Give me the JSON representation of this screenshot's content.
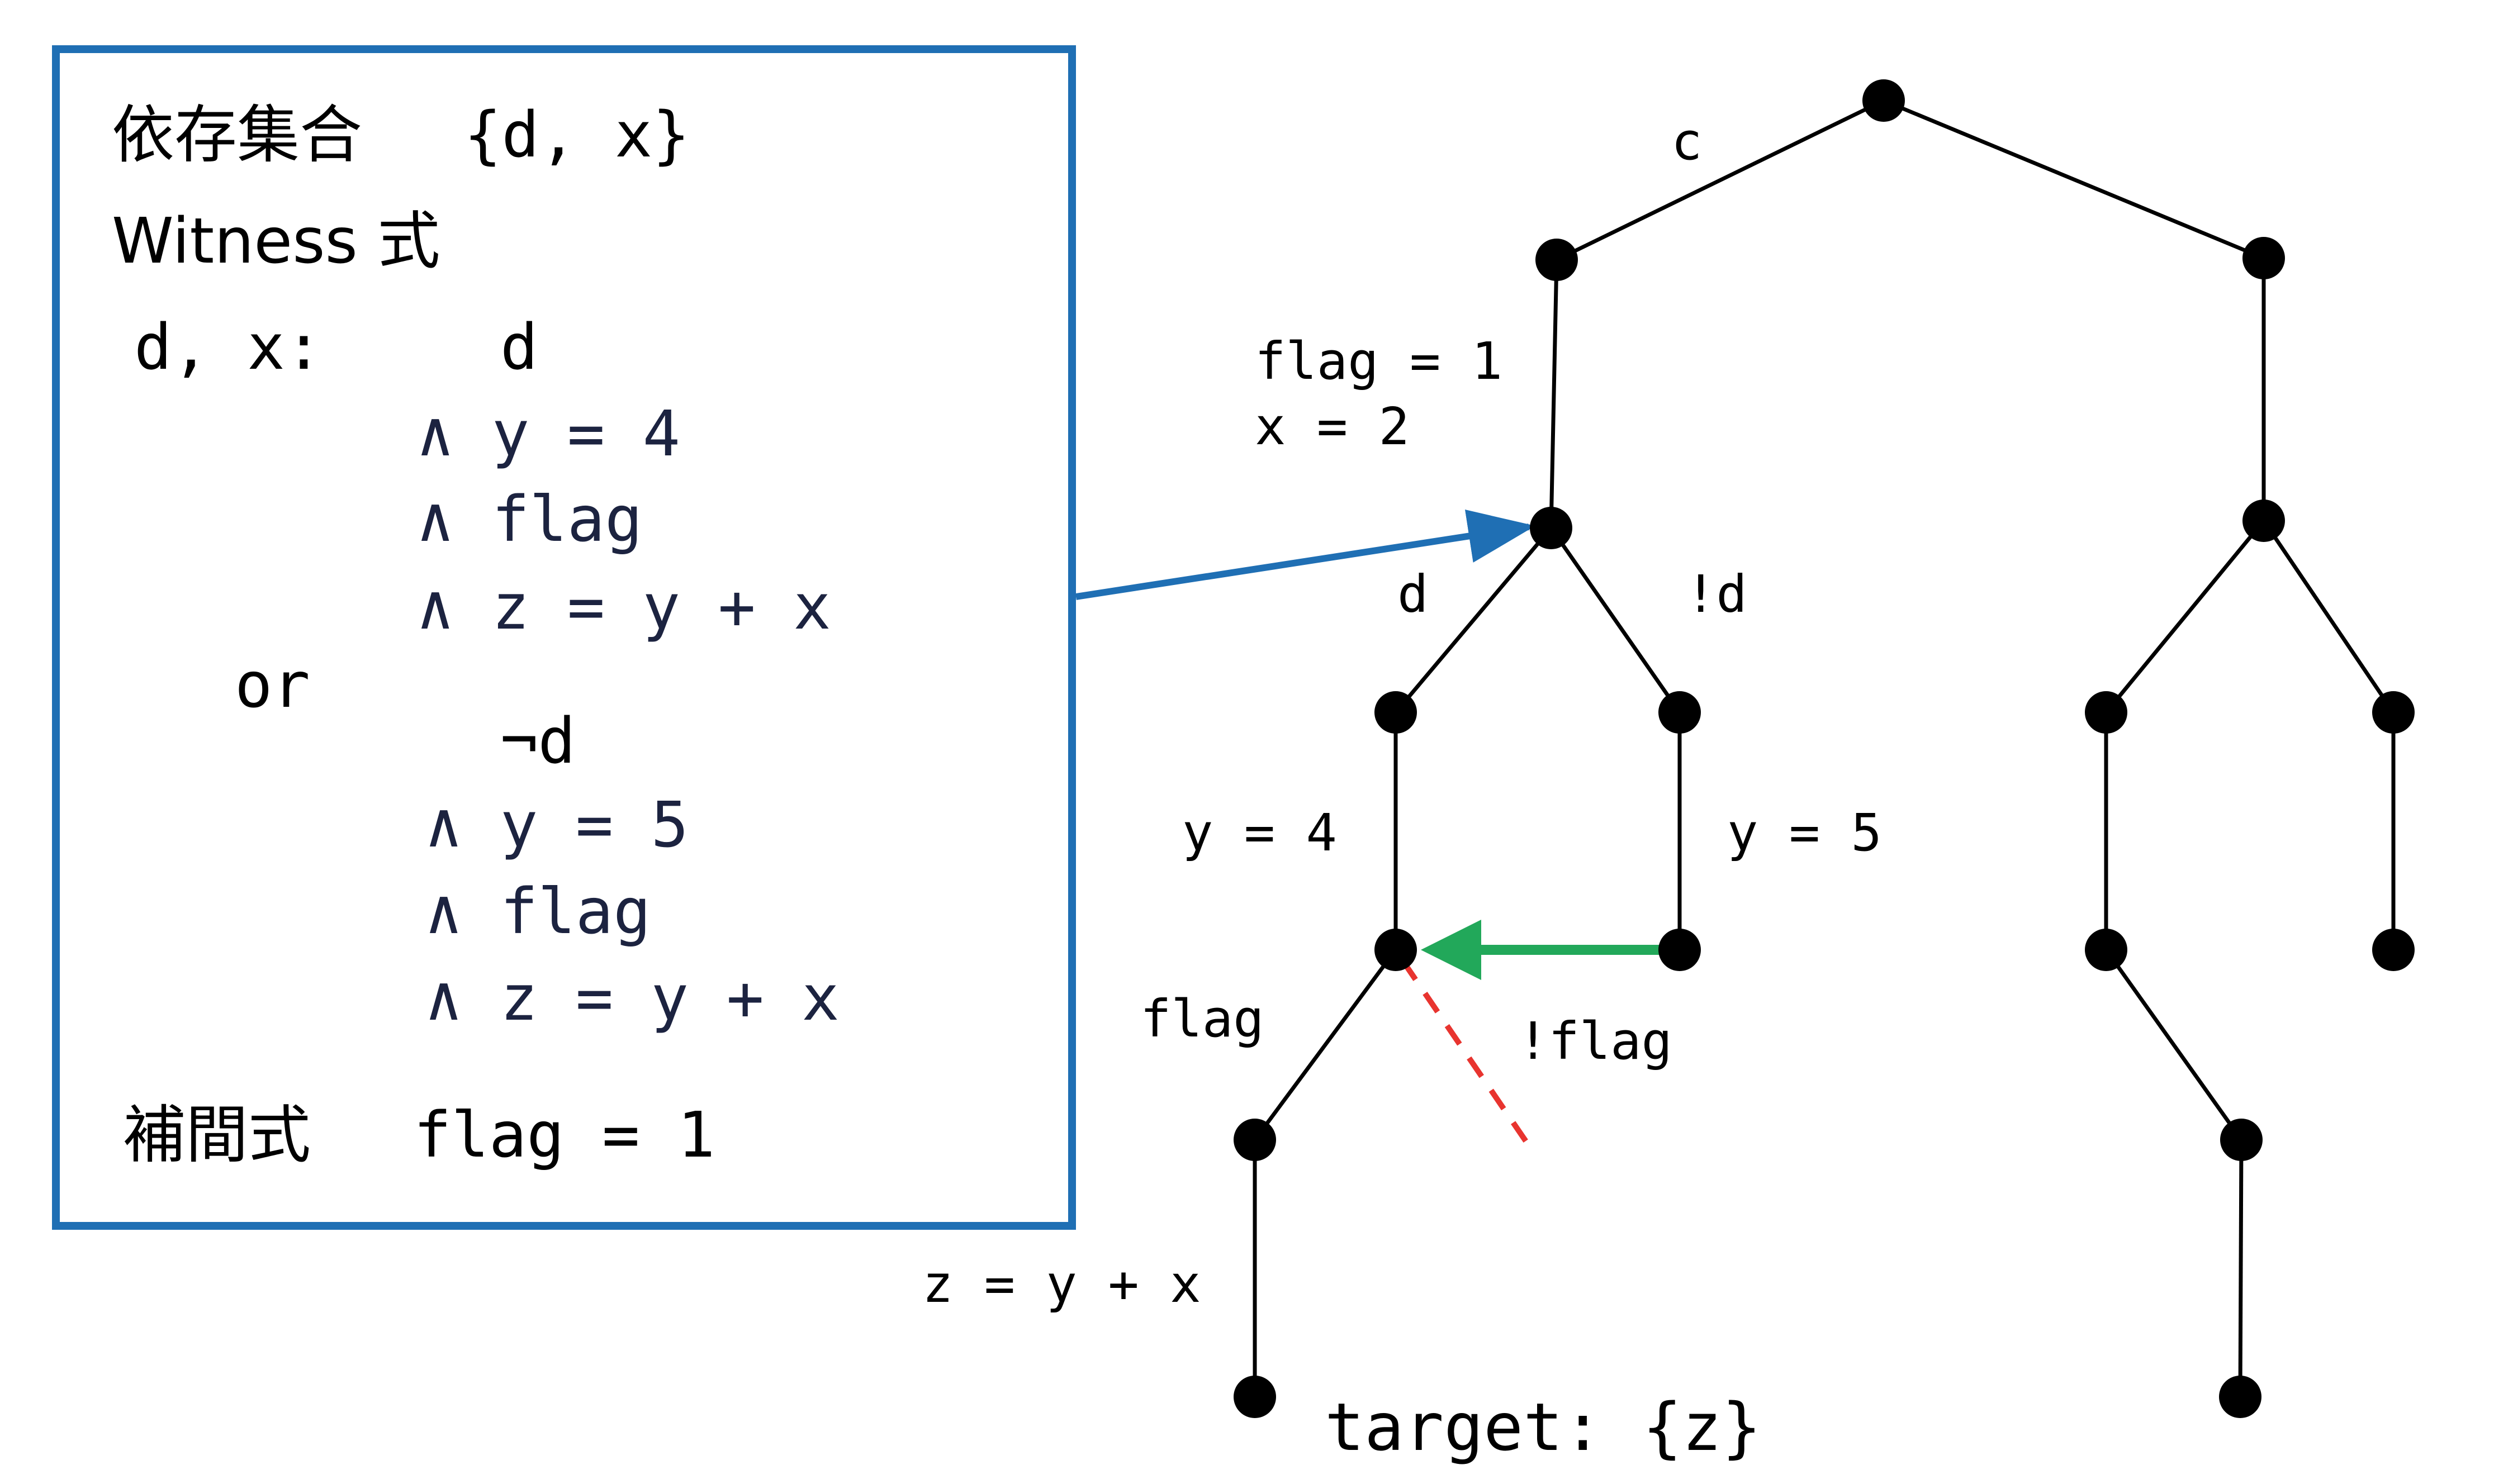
{
  "colors": {
    "box_border": "#1f6fb4",
    "blue_arrow": "#1f6fb4",
    "green_arrow": "#22a85a",
    "red_dashed": "#e8342f",
    "navy_text": "#1c2340",
    "black": "#000000"
  },
  "panel": {
    "dependency_label": "依存集合",
    "dependency_value": "{d, x}",
    "witness_label": "Witness 式",
    "witness_vars": "d, x:",
    "witness_lines": [
      "d",
      "∧ y = 4",
      "∧ flag",
      "∧ z = y + x",
      "or",
      "¬d",
      "∧ y = 5",
      "∧ flag",
      "∧ z = y + x"
    ],
    "interpolant_label": "補間式",
    "interpolant_value": "flag = 1"
  },
  "tree": {
    "edge_labels": {
      "c": "c",
      "flag_assign": "flag = 1",
      "x_assign": "x = 2",
      "d": "d",
      "not_d": "!d",
      "y4": "y = 4",
      "y5": "y = 5",
      "flag": "flag",
      "not_flag": "!flag",
      "z_assign": "z = y + x"
    },
    "target": "target: {z}"
  }
}
